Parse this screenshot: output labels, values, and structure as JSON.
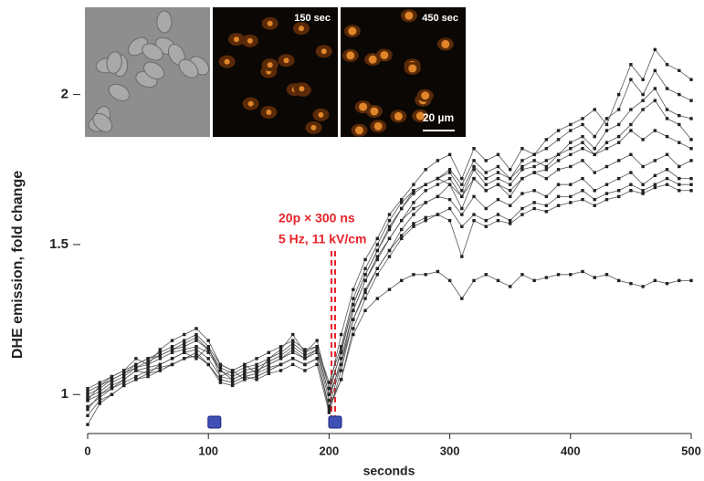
{
  "chart_data": {
    "type": "line",
    "x_label": "seconds",
    "y_label": "DHE emission, fold change",
    "annotations": [
      "20p × 300 ns",
      "5 Hz, 11 kV/cm"
    ],
    "annotation_color": "#e8232a",
    "pulse_lines": [
      202,
      205
    ],
    "pulse_marks": [
      105,
      205
    ],
    "pulse_mark_color": "#3f51b5",
    "inset_labels": [
      "150 sec",
      "450 sec",
      "20 µm"
    ],
    "xlim": [
      0,
      500
    ],
    "xticks": [
      0,
      100,
      200,
      300,
      400,
      500
    ],
    "ylim": [
      0.87,
      2.3
    ],
    "yticks": [
      1,
      1.5,
      2
    ],
    "x": [
      0,
      10,
      20,
      30,
      40,
      50,
      60,
      70,
      80,
      90,
      100,
      110,
      120,
      130,
      140,
      150,
      160,
      170,
      180,
      190,
      200,
      210,
      220,
      230,
      240,
      250,
      260,
      270,
      280,
      290,
      300,
      310,
      320,
      330,
      340,
      350,
      360,
      370,
      380,
      390,
      400,
      410,
      420,
      430,
      440,
      450,
      460,
      470,
      480,
      490,
      500
    ],
    "series": [
      {
        "color": "#222222",
        "values": [
          0.98,
          1.03,
          1.06,
          1.08,
          1.12,
          1.1,
          1.15,
          1.18,
          1.2,
          1.22,
          1.18,
          1.1,
          1.08,
          1.1,
          1.07,
          1.12,
          1.15,
          1.2,
          1.14,
          1.18,
          1.02,
          1.2,
          1.35,
          1.45,
          1.52,
          1.6,
          1.65,
          1.7,
          1.75,
          1.78,
          1.8,
          1.72,
          1.82,
          1.78,
          1.8,
          1.75,
          1.82,
          1.8,
          1.85,
          1.88,
          1.9,
          1.92,
          1.95,
          1.9,
          2.0,
          2.1,
          2.05,
          2.15,
          2.1,
          2.08,
          2.05
        ]
      },
      {
        "color": "#222222",
        "values": [
          1.0,
          1.02,
          1.05,
          1.07,
          1.1,
          1.12,
          1.13,
          1.15,
          1.16,
          1.18,
          1.15,
          1.08,
          1.05,
          1.07,
          1.08,
          1.1,
          1.12,
          1.14,
          1.12,
          1.15,
          1.0,
          1.15,
          1.3,
          1.4,
          1.48,
          1.55,
          1.62,
          1.68,
          1.7,
          1.72,
          1.75,
          1.7,
          1.78,
          1.74,
          1.76,
          1.72,
          1.78,
          1.8,
          1.82,
          1.85,
          1.88,
          1.9,
          1.86,
          1.92,
          1.95,
          2.05,
          2.0,
          2.08,
          2.02,
          2.0,
          1.98
        ]
      },
      {
        "color": "#222222",
        "values": [
          0.95,
          1.0,
          1.02,
          1.05,
          1.08,
          1.07,
          1.1,
          1.12,
          1.14,
          1.12,
          1.16,
          1.06,
          1.08,
          1.05,
          1.06,
          1.08,
          1.1,
          1.12,
          1.1,
          1.12,
          0.96,
          1.1,
          1.28,
          1.38,
          1.45,
          1.52,
          1.58,
          1.64,
          1.68,
          1.7,
          1.72,
          1.66,
          1.75,
          1.7,
          1.72,
          1.7,
          1.75,
          1.76,
          1.78,
          1.8,
          1.84,
          1.86,
          1.82,
          1.88,
          1.9,
          1.95,
          1.98,
          2.02,
          1.95,
          1.93,
          1.92
        ]
      },
      {
        "color": "#222222",
        "values": [
          0.93,
          0.98,
          1.0,
          1.03,
          1.05,
          1.06,
          1.08,
          1.1,
          1.12,
          1.14,
          1.1,
          1.05,
          1.04,
          1.06,
          1.05,
          1.07,
          1.08,
          1.1,
          1.08,
          1.1,
          0.94,
          1.08,
          1.25,
          1.35,
          1.42,
          1.48,
          1.55,
          1.6,
          1.64,
          1.66,
          1.7,
          1.62,
          1.72,
          1.68,
          1.7,
          1.66,
          1.72,
          1.74,
          1.75,
          1.78,
          1.8,
          1.82,
          1.8,
          1.84,
          1.86,
          1.9,
          1.95,
          1.98,
          1.92,
          1.9,
          1.85
        ]
      },
      {
        "color": "#222222",
        "values": [
          1.02,
          1.04,
          1.06,
          1.08,
          1.1,
          1.12,
          1.14,
          1.16,
          1.18,
          1.2,
          1.16,
          1.1,
          1.08,
          1.1,
          1.12,
          1.14,
          1.16,
          1.18,
          1.15,
          1.16,
          1.04,
          1.16,
          1.32,
          1.42,
          1.5,
          1.58,
          1.64,
          1.68,
          1.7,
          1.72,
          1.7,
          1.66,
          1.72,
          1.68,
          1.7,
          1.68,
          1.72,
          1.74,
          1.72,
          1.75,
          1.76,
          1.78,
          1.74,
          1.76,
          1.78,
          1.8,
          1.76,
          1.78,
          1.8,
          1.76,
          1.78
        ]
      },
      {
        "color": "#222222",
        "values": [
          0.98,
          1.0,
          1.03,
          1.05,
          1.08,
          1.09,
          1.1,
          1.12,
          1.14,
          1.15,
          1.12,
          1.06,
          1.05,
          1.07,
          1.08,
          1.1,
          1.12,
          1.15,
          1.12,
          1.14,
          0.98,
          1.12,
          1.28,
          1.38,
          1.46,
          1.52,
          1.58,
          1.62,
          1.64,
          1.66,
          1.65,
          1.6,
          1.66,
          1.62,
          1.65,
          1.63,
          1.67,
          1.68,
          1.66,
          1.7,
          1.7,
          1.72,
          1.68,
          1.7,
          1.72,
          1.74,
          1.7,
          1.73,
          1.75,
          1.72,
          1.72
        ]
      },
      {
        "color": "#222222",
        "values": [
          0.96,
          0.99,
          1.02,
          1.04,
          1.06,
          1.08,
          1.09,
          1.1,
          1.12,
          1.13,
          1.1,
          1.04,
          1.03,
          1.05,
          1.06,
          1.08,
          1.1,
          1.12,
          1.1,
          1.12,
          0.95,
          1.05,
          1.22,
          1.32,
          1.4,
          1.46,
          1.52,
          1.56,
          1.58,
          1.6,
          1.62,
          1.56,
          1.6,
          1.58,
          1.6,
          1.58,
          1.62,
          1.64,
          1.63,
          1.66,
          1.66,
          1.68,
          1.65,
          1.67,
          1.68,
          1.7,
          1.68,
          1.7,
          1.72,
          1.7,
          1.7
        ]
      },
      {
        "color": "#222222",
        "values": [
          0.99,
          1.01,
          1.04,
          1.06,
          1.09,
          1.1,
          1.12,
          1.14,
          1.15,
          1.16,
          1.14,
          1.08,
          1.06,
          1.08,
          1.09,
          1.11,
          1.13,
          1.16,
          1.13,
          1.15,
          1.0,
          1.1,
          1.25,
          1.34,
          1.42,
          1.48,
          1.53,
          1.57,
          1.59,
          1.6,
          1.58,
          1.46,
          1.58,
          1.56,
          1.58,
          1.57,
          1.6,
          1.62,
          1.61,
          1.63,
          1.64,
          1.65,
          1.63,
          1.65,
          1.66,
          1.68,
          1.67,
          1.69,
          1.7,
          1.68,
          1.68
        ]
      },
      {
        "color": "#222222",
        "values": [
          1.01,
          1.03,
          1.05,
          1.07,
          1.09,
          1.11,
          1.13,
          1.15,
          1.17,
          1.19,
          1.15,
          1.09,
          1.07,
          1.09,
          1.1,
          1.12,
          1.14,
          1.17,
          1.14,
          1.16,
          1.02,
          1.14,
          1.3,
          1.4,
          1.48,
          1.56,
          1.62,
          1.67,
          1.7,
          1.72,
          1.74,
          1.68,
          1.76,
          1.72,
          1.74,
          1.72,
          1.76,
          1.78,
          1.76,
          1.8,
          1.82,
          1.84,
          1.8,
          1.82,
          1.84,
          1.88,
          1.85,
          1.88,
          1.86,
          1.84,
          1.82
        ]
      },
      {
        "color": "#222222",
        "values": [
          0.9,
          0.97,
          1.0,
          1.03,
          1.05,
          1.07,
          1.08,
          1.1,
          1.12,
          1.13,
          1.1,
          1.05,
          1.04,
          1.06,
          1.07,
          1.09,
          1.1,
          1.12,
          1.1,
          1.12,
          0.96,
          1.05,
          1.2,
          1.28,
          1.32,
          1.35,
          1.38,
          1.4,
          1.4,
          1.41,
          1.38,
          1.32,
          1.38,
          1.4,
          1.38,
          1.36,
          1.4,
          1.38,
          1.39,
          1.4,
          1.4,
          1.41,
          1.39,
          1.4,
          1.38,
          1.37,
          1.36,
          1.38,
          1.37,
          1.38,
          1.38
        ]
      }
    ]
  }
}
